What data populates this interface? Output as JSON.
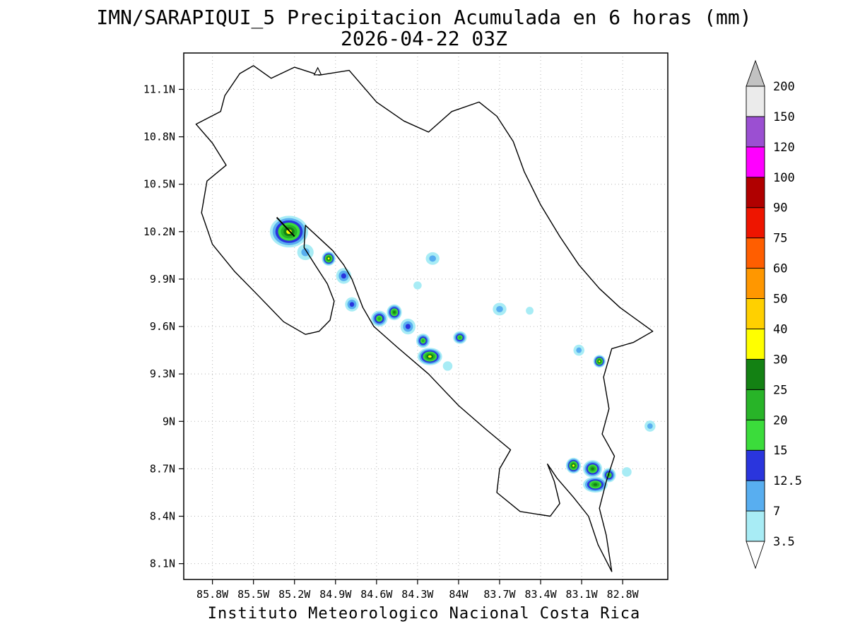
{
  "title": {
    "line1": "IMN/SARAPIQUI_5 Precipitacion Acumulada en 6 horas (mm)",
    "line2": "2026-04-22 03Z"
  },
  "footer": "Instituto Meteorologico Nacional Costa Rica",
  "chart_data": {
    "type": "map_precipitation_contour",
    "region": "Costa Rica",
    "variable": "Precipitacion Acumulada en 6 horas",
    "unit": "mm",
    "valid_time": "2026-04-22 03Z",
    "lat_ticks": [
      "11.1N",
      "10.8N",
      "10.5N",
      "10.2N",
      "9.9N",
      "9.6N",
      "9.3N",
      "9N",
      "8.7N",
      "8.4N",
      "8.1N"
    ],
    "lat_tick_values": [
      11.1,
      10.8,
      10.5,
      10.2,
      9.9,
      9.6,
      9.3,
      9.0,
      8.7,
      8.4,
      8.1
    ],
    "lon_ticks": [
      "85.8W",
      "85.5W",
      "85.2W",
      "84.9W",
      "84.6W",
      "84.3W",
      "84W",
      "83.7W",
      "83.4W",
      "83.1W",
      "82.8W"
    ],
    "lon_tick_values": [
      85.8,
      85.5,
      85.2,
      84.9,
      84.6,
      84.3,
      84.0,
      83.7,
      83.4,
      83.1,
      82.8
    ],
    "map_bounds": {
      "lon_west": 86.01,
      "lon_east": 82.47,
      "lat_north": 11.33,
      "lat_south": 8.0
    },
    "grid_on": true,
    "colorbar": {
      "levels": [
        3.5,
        7,
        12.5,
        15,
        20,
        25,
        30,
        40,
        50,
        60,
        75,
        90,
        100,
        120,
        150,
        200
      ],
      "colors": [
        "#a8ecf5",
        "#58aef0",
        "#2a35dd",
        "#3bdc3b",
        "#28b428",
        "#138113",
        "#ffff00",
        "#ffd000",
        "#ff9700",
        "#ff5e00",
        "#ee1500",
        "#b00000",
        "#ff00ff",
        "#9b4fd2",
        "#ebebeb"
      ],
      "below_color": "#ffffff",
      "above_color": "#c2c2c2"
    },
    "coastline": [
      [
        85.71,
        11.06
      ],
      [
        85.6,
        11.2
      ],
      [
        85.5,
        11.25
      ],
      [
        85.37,
        11.17
      ],
      [
        85.2,
        11.24
      ],
      [
        85.02,
        11.19
      ],
      [
        84.8,
        11.22
      ],
      [
        84.6,
        11.02
      ],
      [
        84.4,
        10.9
      ],
      [
        84.22,
        10.83
      ],
      [
        84.05,
        10.96
      ],
      [
        83.85,
        11.02
      ],
      [
        83.72,
        10.93
      ],
      [
        83.6,
        10.77
      ],
      [
        83.52,
        10.58
      ],
      [
        83.4,
        10.37
      ],
      [
        83.26,
        10.17
      ],
      [
        83.12,
        9.99
      ],
      [
        82.97,
        9.84
      ],
      [
        82.82,
        9.72
      ],
      [
        82.66,
        9.62
      ],
      [
        82.58,
        9.57
      ],
      [
        82.72,
        9.5
      ],
      [
        82.88,
        9.46
      ],
      [
        82.94,
        9.28
      ],
      [
        82.9,
        9.08
      ],
      [
        82.95,
        8.92
      ],
      [
        82.86,
        8.78
      ],
      [
        82.92,
        8.62
      ],
      [
        82.97,
        8.45
      ],
      [
        82.92,
        8.28
      ],
      [
        82.88,
        8.05
      ],
      [
        82.98,
        8.22
      ],
      [
        83.05,
        8.4
      ],
      [
        83.16,
        8.52
      ],
      [
        83.28,
        8.64
      ],
      [
        83.35,
        8.73
      ],
      [
        83.3,
        8.62
      ],
      [
        83.26,
        8.48
      ],
      [
        83.33,
        8.4
      ],
      [
        83.55,
        8.43
      ],
      [
        83.72,
        8.55
      ],
      [
        83.7,
        8.7
      ],
      [
        83.62,
        8.82
      ],
      [
        83.8,
        8.95
      ],
      [
        84.0,
        9.1
      ],
      [
        84.22,
        9.3
      ],
      [
        84.45,
        9.47
      ],
      [
        84.62,
        9.6
      ],
      [
        84.7,
        9.72
      ],
      [
        84.78,
        9.9
      ],
      [
        84.84,
        9.99
      ],
      [
        84.92,
        10.08
      ],
      [
        85.02,
        10.16
      ],
      [
        85.12,
        10.24
      ],
      [
        85.13,
        10.1
      ],
      [
        85.05,
        9.99
      ],
      [
        84.96,
        9.87
      ],
      [
        84.91,
        9.76
      ],
      [
        84.94,
        9.64
      ],
      [
        85.02,
        9.57
      ],
      [
        85.12,
        9.55
      ],
      [
        85.28,
        9.63
      ],
      [
        85.47,
        9.8
      ],
      [
        85.64,
        9.95
      ],
      [
        85.8,
        10.12
      ],
      [
        85.88,
        10.32
      ],
      [
        85.84,
        10.52
      ],
      [
        85.7,
        10.62
      ],
      [
        85.8,
        10.76
      ],
      [
        85.92,
        10.88
      ],
      [
        85.74,
        10.96
      ]
    ],
    "river_line": [
      [
        85.33,
        10.29
      ],
      [
        85.2,
        10.17
      ]
    ],
    "triangle_marker": {
      "lon": 85.03,
      "lat": 11.21
    },
    "cells": [
      {
        "lon": 85.24,
        "lat": 10.2,
        "rx": 0.14,
        "ry": 0.1,
        "peak": 6
      },
      {
        "lon": 85.12,
        "lat": 10.07,
        "rx": 0.06,
        "ry": 0.05,
        "peak": 1
      },
      {
        "lon": 84.95,
        "lat": 10.03,
        "rx": 0.05,
        "ry": 0.045,
        "peak": 6
      },
      {
        "lon": 84.84,
        "lat": 9.92,
        "rx": 0.055,
        "ry": 0.05,
        "peak": 2
      },
      {
        "lon": 84.19,
        "lat": 10.03,
        "rx": 0.05,
        "ry": 0.04,
        "peak": 1
      },
      {
        "lon": 84.78,
        "lat": 9.74,
        "rx": 0.05,
        "ry": 0.045,
        "peak": 2
      },
      {
        "lon": 84.3,
        "lat": 9.86,
        "rx": 0.03,
        "ry": 0.025,
        "peak": 0
      },
      {
        "lon": 84.58,
        "lat": 9.65,
        "rx": 0.06,
        "ry": 0.05,
        "peak": 4
      },
      {
        "lon": 84.47,
        "lat": 9.69,
        "rx": 0.055,
        "ry": 0.05,
        "peak": 5
      },
      {
        "lon": 84.37,
        "lat": 9.6,
        "rx": 0.055,
        "ry": 0.05,
        "peak": 2
      },
      {
        "lon": 84.26,
        "lat": 9.51,
        "rx": 0.05,
        "ry": 0.045,
        "peak": 4
      },
      {
        "lon": 84.21,
        "lat": 9.41,
        "rx": 0.09,
        "ry": 0.055,
        "peak": 6
      },
      {
        "lon": 84.08,
        "lat": 9.35,
        "rx": 0.035,
        "ry": 0.03,
        "peak": 0
      },
      {
        "lon": 83.99,
        "lat": 9.53,
        "rx": 0.05,
        "ry": 0.04,
        "peak": 4
      },
      {
        "lon": 83.7,
        "lat": 9.71,
        "rx": 0.05,
        "ry": 0.04,
        "peak": 1
      },
      {
        "lon": 83.48,
        "lat": 9.7,
        "rx": 0.028,
        "ry": 0.025,
        "peak": 0
      },
      {
        "lon": 83.12,
        "lat": 9.45,
        "rx": 0.04,
        "ry": 0.035,
        "peak": 1
      },
      {
        "lon": 82.97,
        "lat": 9.38,
        "rx": 0.045,
        "ry": 0.04,
        "peak": 6
      },
      {
        "lon": 82.6,
        "lat": 8.97,
        "rx": 0.04,
        "ry": 0.035,
        "peak": 1
      },
      {
        "lon": 83.16,
        "lat": 8.72,
        "rx": 0.055,
        "ry": 0.05,
        "peak": 6
      },
      {
        "lon": 83.02,
        "lat": 8.7,
        "rx": 0.07,
        "ry": 0.055,
        "peak": 5
      },
      {
        "lon": 83.0,
        "lat": 8.6,
        "rx": 0.09,
        "ry": 0.05,
        "peak": 5
      },
      {
        "lon": 82.9,
        "lat": 8.66,
        "rx": 0.05,
        "ry": 0.045,
        "peak": 4
      },
      {
        "lon": 82.77,
        "lat": 8.68,
        "rx": 0.035,
        "ry": 0.03,
        "peak": 0
      }
    ]
  }
}
